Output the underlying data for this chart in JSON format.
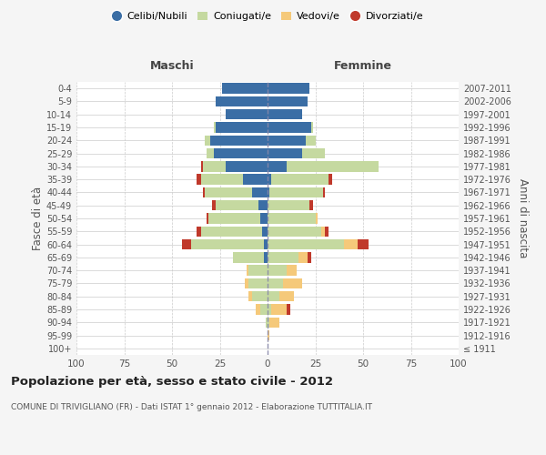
{
  "age_groups": [
    "100+",
    "95-99",
    "90-94",
    "85-89",
    "80-84",
    "75-79",
    "70-74",
    "65-69",
    "60-64",
    "55-59",
    "50-54",
    "45-49",
    "40-44",
    "35-39",
    "30-34",
    "25-29",
    "20-24",
    "15-19",
    "10-14",
    "5-9",
    "0-4"
  ],
  "birth_years": [
    "≤ 1911",
    "1912-1916",
    "1917-1921",
    "1922-1926",
    "1927-1931",
    "1932-1936",
    "1937-1941",
    "1942-1946",
    "1947-1951",
    "1952-1956",
    "1957-1961",
    "1962-1966",
    "1967-1971",
    "1972-1976",
    "1977-1981",
    "1982-1986",
    "1987-1991",
    "1992-1996",
    "1997-2001",
    "2002-2006",
    "2007-2011"
  ],
  "maschi": {
    "celibi": [
      0,
      0,
      0,
      0,
      0,
      0,
      0,
      2,
      2,
      3,
      4,
      5,
      8,
      13,
      22,
      28,
      30,
      27,
      22,
      27,
      24
    ],
    "coniugati": [
      0,
      0,
      1,
      4,
      8,
      10,
      10,
      16,
      38,
      32,
      27,
      22,
      25,
      22,
      12,
      4,
      3,
      1,
      0,
      0,
      0
    ],
    "vedovi": [
      0,
      0,
      0,
      2,
      2,
      2,
      1,
      0,
      0,
      0,
      0,
      0,
      0,
      0,
      0,
      0,
      0,
      0,
      0,
      0,
      0
    ],
    "divorziati": [
      0,
      0,
      0,
      0,
      0,
      0,
      0,
      0,
      5,
      2,
      1,
      2,
      1,
      2,
      1,
      0,
      0,
      0,
      0,
      0,
      0
    ]
  },
  "femmine": {
    "nubili": [
      0,
      0,
      0,
      0,
      0,
      0,
      0,
      0,
      0,
      0,
      0,
      0,
      1,
      2,
      10,
      18,
      20,
      23,
      18,
      21,
      22
    ],
    "coniugate": [
      0,
      0,
      1,
      2,
      6,
      8,
      10,
      16,
      40,
      28,
      25,
      22,
      28,
      30,
      48,
      12,
      5,
      1,
      0,
      0,
      0
    ],
    "vedove": [
      0,
      1,
      5,
      8,
      8,
      10,
      5,
      5,
      7,
      2,
      1,
      0,
      0,
      0,
      0,
      0,
      0,
      0,
      0,
      0,
      0
    ],
    "divorziate": [
      0,
      0,
      0,
      2,
      0,
      0,
      0,
      2,
      6,
      2,
      0,
      2,
      1,
      2,
      0,
      0,
      0,
      0,
      0,
      0,
      0
    ]
  },
  "colors": {
    "celibi_nubili": "#3b6ea5",
    "coniugati": "#c5d9a0",
    "vedovi": "#f5c97a",
    "divorziati": "#c0392b"
  },
  "xlim": 100,
  "title": "Popolazione per età, sesso e stato civile - 2012",
  "subtitle": "COMUNE DI TRIVIGLIANO (FR) - Dati ISTAT 1° gennaio 2012 - Elaborazione TUTTITALIA.IT",
  "ylabel_left": "Fasce di età",
  "ylabel_right": "Anni di nascita",
  "xlabel_maschi": "Maschi",
  "xlabel_femmine": "Femmine",
  "legend_labels": [
    "Celibi/Nubili",
    "Coniugati/e",
    "Vedovi/e",
    "Divorziati/e"
  ],
  "background_color": "#f5f5f5",
  "plot_bg_color": "#ffffff"
}
